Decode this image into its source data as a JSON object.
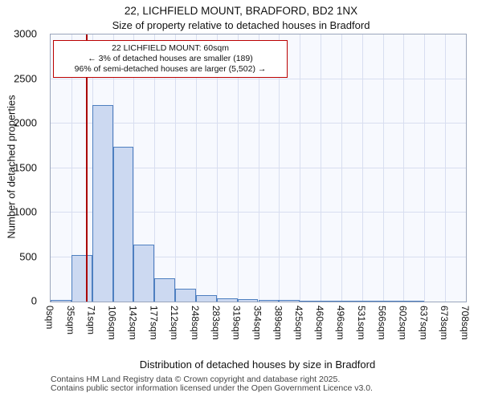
{
  "title": "22, LICHFIELD MOUNT, BRADFORD, BD2 1NX",
  "subtitle": "Size of property relative to detached houses in Bradford",
  "annotation": {
    "line1": "22 LICHFIELD MOUNT: 60sqm",
    "line2": "← 3% of detached houses are smaller (189)",
    "line3": "96% of semi-detached houses are larger (5,502) →"
  },
  "chart_data": {
    "type": "bar",
    "title": "22, LICHFIELD MOUNT, BRADFORD, BD2 1NX",
    "subtitle": "Size of property relative to detached houses in Bradford",
    "xlabel": "Distribution of detached houses by size in Bradford",
    "ylabel": "Number of detached properties",
    "categories": [
      "0sqm",
      "35sqm",
      "71sqm",
      "106sqm",
      "142sqm",
      "177sqm",
      "212sqm",
      "248sqm",
      "283sqm",
      "319sqm",
      "354sqm",
      "389sqm",
      "425sqm",
      "460sqm",
      "496sqm",
      "531sqm",
      "566sqm",
      "602sqm",
      "637sqm",
      "673sqm",
      "708sqm"
    ],
    "values": [
      20,
      520,
      2210,
      1740,
      640,
      260,
      140,
      75,
      40,
      30,
      20,
      15,
      10,
      5,
      3,
      2,
      1,
      1,
      0,
      0
    ],
    "ylim": [
      0,
      3000
    ],
    "yticks": [
      0,
      500,
      1000,
      1500,
      2000,
      2500,
      3000
    ],
    "grid": true,
    "legend": "none",
    "marker": {
      "label": "22 LICHFIELD MOUNT",
      "value_sqm": 60,
      "max_sqm": 708,
      "color": "#aa0000"
    },
    "bar_fill": "#ccd9f1",
    "bar_border": "#4e7fc0"
  },
  "footer": {
    "line1": "Contains HM Land Registry data © Crown copyright and database right 2025.",
    "line2": "Contains public sector information licensed under the Open Government Licence v3.0."
  }
}
